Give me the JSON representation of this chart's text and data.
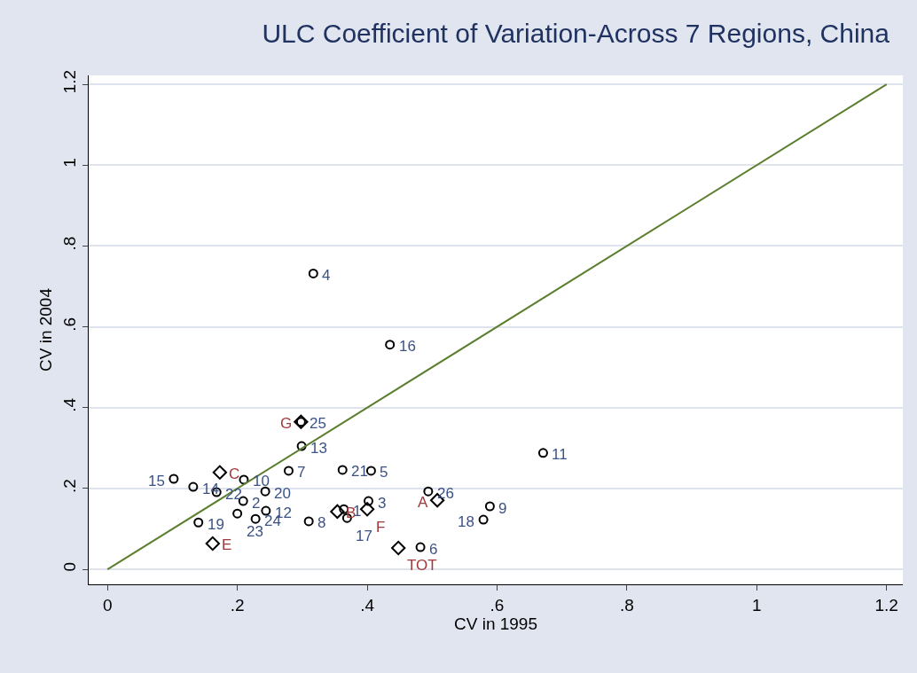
{
  "chart_data": {
    "type": "scatter",
    "title": "ULC Coefficient of Variation-Across 7 Regions, China",
    "xlabel": "CV in 1995",
    "ylabel": "CV in 2004",
    "series": [
      {
        "marker": "circle",
        "color": "#000000",
        "x": [
          0.364,
          0.209,
          0.402,
          0.317,
          0.406,
          0.482,
          0.279,
          0.31,
          0.589,
          0.21,
          0.671,
          0.244,
          0.299,
          0.132,
          0.102,
          0.435,
          0.369,
          0.579,
          0.14,
          0.243,
          0.362,
          0.168,
          0.2,
          0.228,
          0.298,
          0.494
        ],
        "values": [
          0.149,
          0.169,
          0.169,
          0.732,
          0.244,
          0.055,
          0.244,
          0.119,
          0.156,
          0.222,
          0.288,
          0.145,
          0.305,
          0.204,
          0.224,
          0.556,
          0.127,
          0.123,
          0.116,
          0.193,
          0.246,
          0.191,
          0.138,
          0.125,
          0.365,
          0.193
        ]
      },
      {
        "marker": "diamond",
        "color": "#000000",
        "x": [
          0.508,
          0.354,
          0.173,
          0.162,
          0.4,
          0.298,
          0.448
        ],
        "values": [
          0.171,
          0.143,
          0.24,
          0.064,
          0.149,
          0.365,
          0.053
        ]
      },
      {
        "type": "line",
        "marker": "none",
        "color": "#5b7f2e",
        "x": [
          0,
          1.2
        ],
        "values": [
          0,
          1.2
        ]
      }
    ],
    "annotations": [
      {
        "text": "1",
        "x": 0.364,
        "y": 0.149
      },
      {
        "text": "2",
        "x": 0.209,
        "y": 0.169
      },
      {
        "text": "3",
        "x": 0.402,
        "y": 0.169
      },
      {
        "text": "4",
        "x": 0.317,
        "y": 0.732
      },
      {
        "text": "5",
        "x": 0.406,
        "y": 0.244
      },
      {
        "text": "6",
        "x": 0.482,
        "y": 0.055
      },
      {
        "text": "7",
        "x": 0.279,
        "y": 0.244
      },
      {
        "text": "8",
        "x": 0.31,
        "y": 0.119
      },
      {
        "text": "9",
        "x": 0.589,
        "y": 0.156
      },
      {
        "text": "10",
        "x": 0.21,
        "y": 0.222
      },
      {
        "text": "11",
        "x": 0.671,
        "y": 0.288
      },
      {
        "text": "12",
        "x": 0.244,
        "y": 0.145
      },
      {
        "text": "13",
        "x": 0.299,
        "y": 0.305
      },
      {
        "text": "14",
        "x": 0.132,
        "y": 0.204
      },
      {
        "text": "15",
        "x": 0.102,
        "y": 0.224
      },
      {
        "text": "16",
        "x": 0.435,
        "y": 0.556
      },
      {
        "text": "17",
        "x": 0.369,
        "y": 0.127
      },
      {
        "text": "18",
        "x": 0.579,
        "y": 0.123
      },
      {
        "text": "19",
        "x": 0.14,
        "y": 0.116
      },
      {
        "text": "20",
        "x": 0.243,
        "y": 0.193
      },
      {
        "text": "21",
        "x": 0.362,
        "y": 0.246
      },
      {
        "text": "22",
        "x": 0.168,
        "y": 0.191
      },
      {
        "text": "23",
        "x": 0.2,
        "y": 0.138
      },
      {
        "text": "24",
        "x": 0.228,
        "y": 0.125
      },
      {
        "text": "25",
        "x": 0.298,
        "y": 0.365
      },
      {
        "text": "26",
        "x": 0.494,
        "y": 0.193
      },
      {
        "text": "A",
        "x": 0.508,
        "y": 0.171
      },
      {
        "text": "B",
        "x": 0.354,
        "y": 0.143
      },
      {
        "text": "C",
        "x": 0.173,
        "y": 0.24
      },
      {
        "text": "E",
        "x": 0.162,
        "y": 0.064
      },
      {
        "text": "F",
        "x": 0.4,
        "y": 0.149
      },
      {
        "text": "G",
        "x": 0.298,
        "y": 0.365
      },
      {
        "text": "TOT",
        "x": 0.448,
        "y": 0.053
      }
    ],
    "xlim": [
      -0.029,
      1.225
    ],
    "ylim": [
      -0.037,
      1.222
    ],
    "xticks": [
      0,
      {
        "value": 0.2,
        "label": ".2"
      },
      {
        "value": 0.4,
        "label": ".4"
      },
      {
        "value": 0.6,
        "label": ".6"
      },
      {
        "value": 0.8,
        "label": ".8"
      },
      1,
      1.2
    ],
    "yticks": [
      0,
      {
        "value": 0.2,
        "label": ".2"
      },
      {
        "value": 0.4,
        "label": ".4"
      },
      {
        "value": 0.6,
        "label": ".6"
      },
      {
        "value": 0.8,
        "label": ".8"
      },
      1,
      1.2
    ],
    "grid": "y"
  }
}
